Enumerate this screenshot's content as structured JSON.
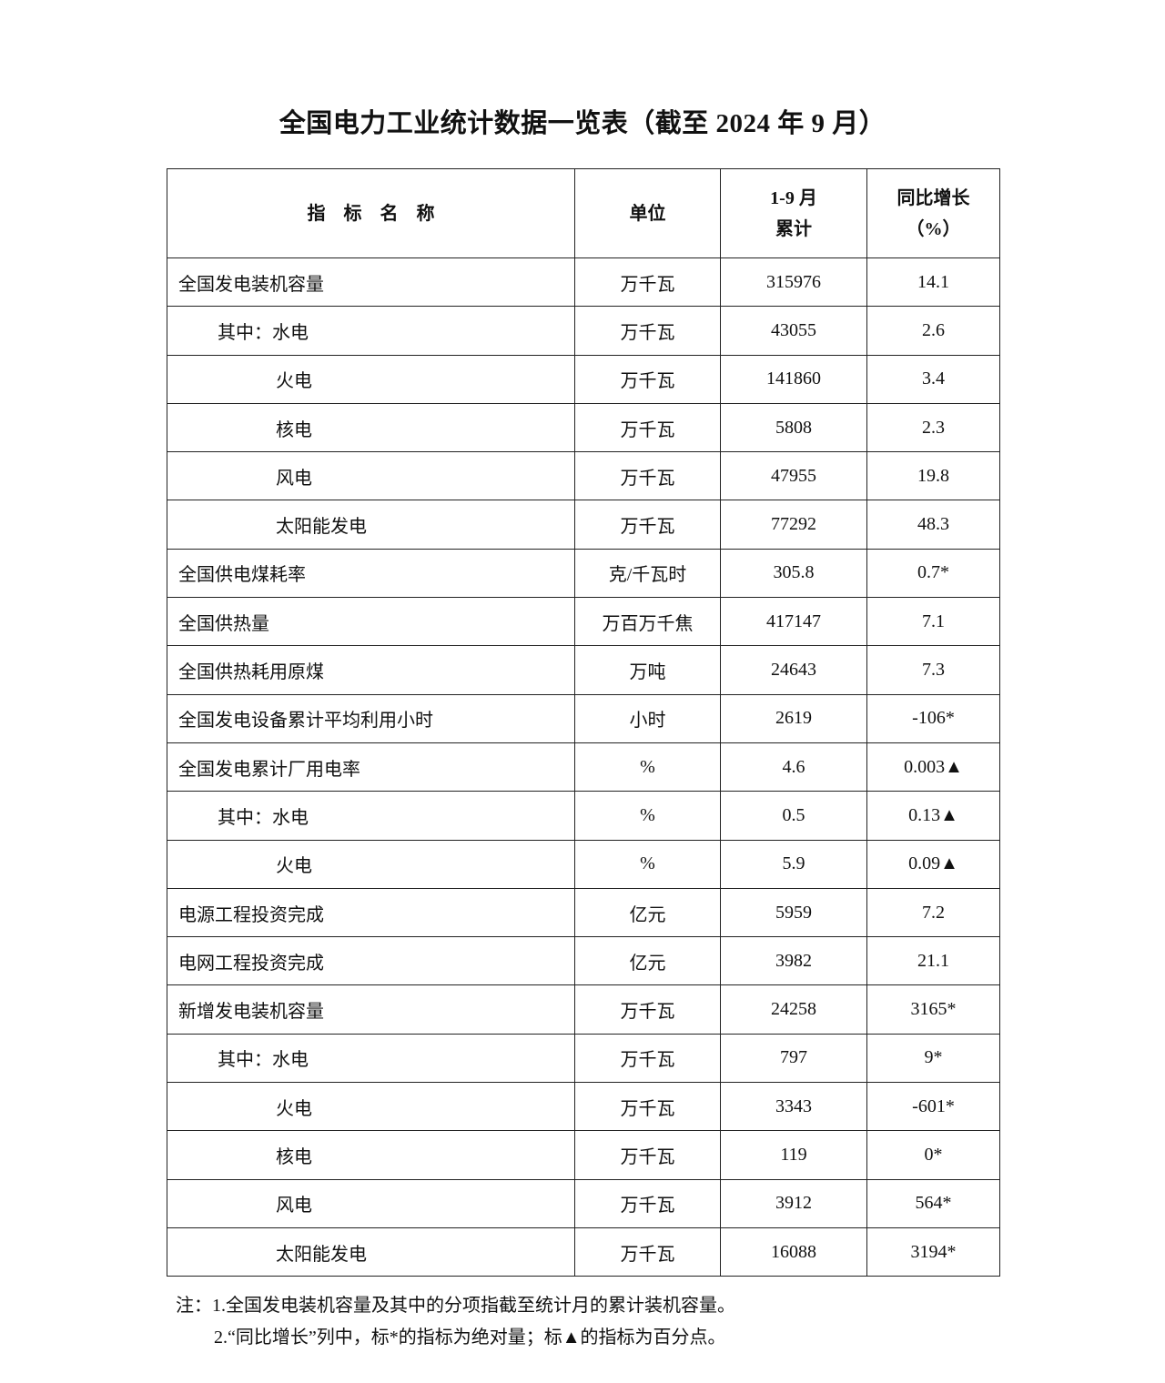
{
  "title": "全国电力工业统计数据一览表（截至 2024 年 9 月）",
  "headers": {
    "name": "指　标　名　称",
    "unit": "单位",
    "cumulative_line1": "1-9 月",
    "cumulative_line2": "累计",
    "growth_line1": "同比增长",
    "growth_line2": "（%）"
  },
  "rows": [
    {
      "name": "全国发电装机容量",
      "level": 0,
      "unit": "万千瓦",
      "value": "315976",
      "growth": "14.1"
    },
    {
      "name": "其中：水电",
      "level": 1,
      "unit": "万千瓦",
      "value": "43055",
      "growth": "2.6"
    },
    {
      "name": "火电",
      "level": 2,
      "unit": "万千瓦",
      "value": "141860",
      "growth": "3.4"
    },
    {
      "name": "核电",
      "level": 2,
      "unit": "万千瓦",
      "value": "5808",
      "growth": "2.3"
    },
    {
      "name": "风电",
      "level": 2,
      "unit": "万千瓦",
      "value": "47955",
      "growth": "19.8"
    },
    {
      "name": "太阳能发电",
      "level": 2,
      "unit": "万千瓦",
      "value": "77292",
      "growth": "48.3"
    },
    {
      "name": "全国供电煤耗率",
      "level": 0,
      "unit": "克/千瓦时",
      "value": "305.8",
      "growth": "0.7*"
    },
    {
      "name": "全国供热量",
      "level": 0,
      "unit": "万百万千焦",
      "value": "417147",
      "growth": "7.1"
    },
    {
      "name": "全国供热耗用原煤",
      "level": 0,
      "unit": "万吨",
      "value": "24643",
      "growth": "7.3"
    },
    {
      "name": "全国发电设备累计平均利用小时",
      "level": 0,
      "unit": "小时",
      "value": "2619",
      "growth": "-106*"
    },
    {
      "name": "全国发电累计厂用电率",
      "level": 0,
      "unit": "%",
      "value": "4.6",
      "growth": "0.003▲"
    },
    {
      "name": "其中：水电",
      "level": 1,
      "unit": "%",
      "value": "0.5",
      "growth": "0.13▲"
    },
    {
      "name": "火电",
      "level": 2,
      "unit": "%",
      "value": "5.9",
      "growth": "0.09▲"
    },
    {
      "name": "电源工程投资完成",
      "level": 0,
      "unit": "亿元",
      "value": "5959",
      "growth": "7.2"
    },
    {
      "name": "电网工程投资完成",
      "level": 0,
      "unit": "亿元",
      "value": "3982",
      "growth": "21.1"
    },
    {
      "name": "新增发电装机容量",
      "level": 0,
      "unit": "万千瓦",
      "value": "24258",
      "growth": "3165*"
    },
    {
      "name": "其中：水电",
      "level": 1,
      "unit": "万千瓦",
      "value": "797",
      "growth": "9*"
    },
    {
      "name": "火电",
      "level": 2,
      "unit": "万千瓦",
      "value": "3343",
      "growth": "-601*"
    },
    {
      "name": "核电",
      "level": 2,
      "unit": "万千瓦",
      "value": "119",
      "growth": "0*"
    },
    {
      "name": "风电",
      "level": 2,
      "unit": "万千瓦",
      "value": "3912",
      "growth": "564*"
    },
    {
      "name": "太阳能发电",
      "level": 2,
      "unit": "万千瓦",
      "value": "16088",
      "growth": "3194*"
    }
  ],
  "notes": [
    "注：1.全国发电装机容量及其中的分项指截至统计月的累计装机容量。",
    "2.“同比增长”列中，标*的指标为绝对量；标▲的指标为百分点。"
  ]
}
